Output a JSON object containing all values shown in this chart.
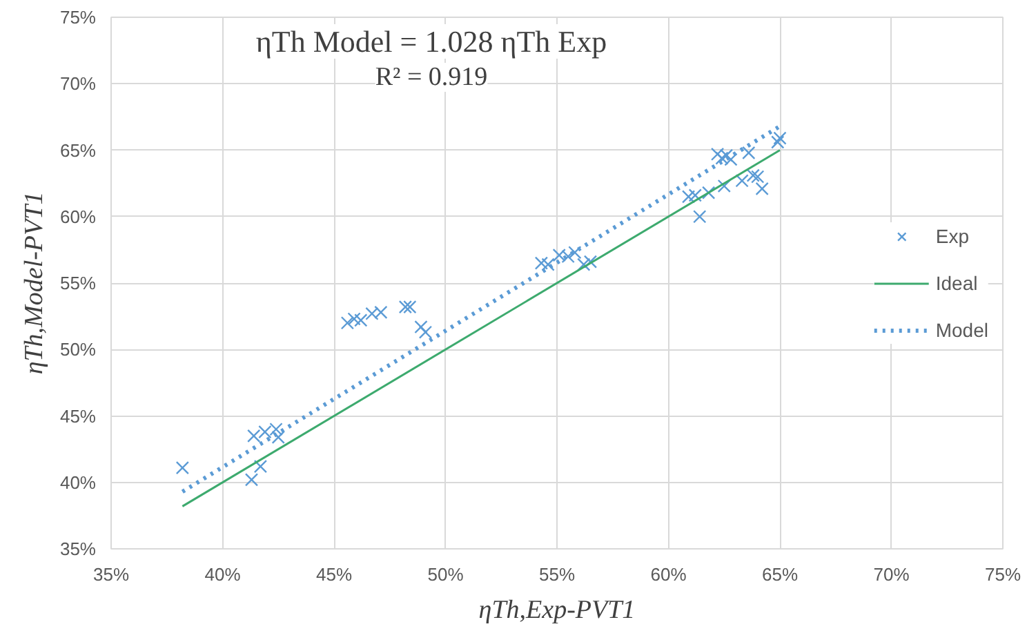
{
  "chart_data": {
    "type": "scatter",
    "xlabel": "ηTh,Exp-PVT1",
    "ylabel": "ηTh,Model-PVT1",
    "annotations": [
      "ηTh Model = 1.028 ηTh Exp",
      "R² = 0.919"
    ],
    "xlim": [
      35,
      75
    ],
    "ylim": [
      35,
      75
    ],
    "xticks": [
      {
        "value": 35,
        "label": "35%"
      },
      {
        "value": 40,
        "label": "40%"
      },
      {
        "value": 45,
        "label": "45%"
      },
      {
        "value": 50,
        "label": "50%"
      },
      {
        "value": 55,
        "label": "55%"
      },
      {
        "value": 60,
        "label": "60%"
      },
      {
        "value": 65,
        "label": "65%"
      },
      {
        "value": 70,
        "label": "70%"
      },
      {
        "value": 75,
        "label": "75%"
      }
    ],
    "yticks": [
      {
        "value": 35,
        "label": "35%"
      },
      {
        "value": 40,
        "label": "40%"
      },
      {
        "value": 45,
        "label": "45%"
      },
      {
        "value": 50,
        "label": "50%"
      },
      {
        "value": 55,
        "label": "55%"
      },
      {
        "value": 60,
        "label": "60%"
      },
      {
        "value": 65,
        "label": "65%"
      },
      {
        "value": 70,
        "label": "70%"
      },
      {
        "value": 75,
        "label": "75%"
      }
    ],
    "grid": true,
    "legend": "right",
    "series": [
      {
        "name": "Exp",
        "marker": "cross",
        "color": "#5b9bd5",
        "x": [
          38.2,
          41.3,
          41.7,
          41.4,
          41.9,
          42.3,
          42.5,
          42.4,
          45.6,
          45.9,
          46.2,
          46.7,
          47.1,
          48.2,
          48.4,
          48.9,
          49.1,
          54.3,
          54.6,
          55.1,
          55.5,
          55.8,
          56.2,
          56.5,
          60.9,
          61.2,
          61.4,
          61.8,
          62.2,
          62.4,
          62.6,
          62.8,
          62.5,
          63.3,
          63.6,
          63.8,
          64.0,
          64.2,
          64.9,
          65.0
        ],
        "values": [
          41.1,
          40.2,
          41.2,
          43.5,
          43.8,
          null,
          43.4,
          44.0,
          52.0,
          52.3,
          52.2,
          52.7,
          52.8,
          53.2,
          53.2,
          51.7,
          51.3,
          56.5,
          56.4,
          57.1,
          57.0,
          57.3,
          56.4,
          56.6,
          61.5,
          61.6,
          60.0,
          61.8,
          64.7,
          64.4,
          64.6,
          64.3,
          62.3,
          62.7,
          64.8,
          63.1,
          63.0,
          62.1,
          65.6,
          65.9
        ]
      },
      {
        "name": "Ideal",
        "type": "line",
        "line_style": "solid",
        "color": "#3daa6e",
        "x": [
          38.2,
          65.0
        ],
        "values": [
          38.2,
          65.0
        ]
      },
      {
        "name": "Model",
        "type": "line",
        "line_style": "dotted",
        "color": "#5b9bd5",
        "x": [
          38.2,
          65.0
        ],
        "values": [
          39.3,
          66.8
        ]
      }
    ]
  }
}
